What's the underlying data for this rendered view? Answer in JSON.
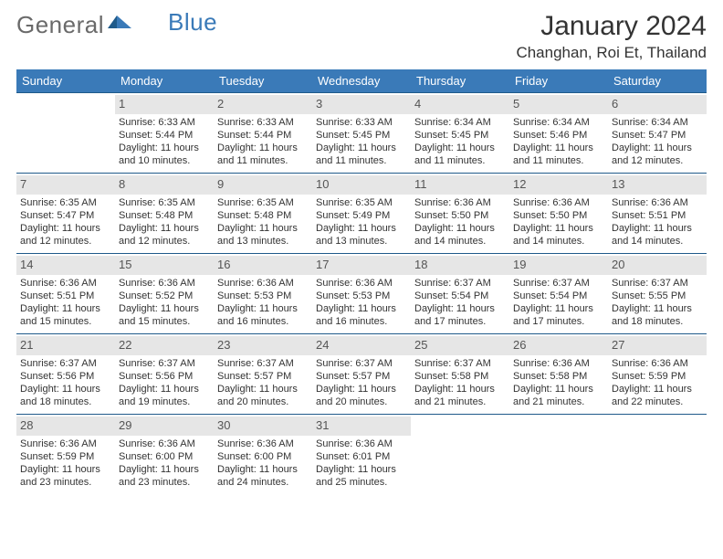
{
  "brand": {
    "text1": "General",
    "text2": "Blue"
  },
  "title": "January 2024",
  "location": "Changhan, Roi Et, Thailand",
  "colors": {
    "header_bg": "#3a7ab8",
    "header_text": "#ffffff",
    "daynum_bg": "#e6e6e6",
    "row_border": "#1f5a8a",
    "body_text": "#333333",
    "page_bg": "#ffffff"
  },
  "weekdays": [
    "Sunday",
    "Monday",
    "Tuesday",
    "Wednesday",
    "Thursday",
    "Friday",
    "Saturday"
  ],
  "grid": {
    "start_offset": 1,
    "rows": 5,
    "cols": 7
  },
  "days": [
    {
      "n": "1",
      "sunrise": "Sunrise: 6:33 AM",
      "sunset": "Sunset: 5:44 PM",
      "d1": "Daylight: 11 hours",
      "d2": "and 10 minutes."
    },
    {
      "n": "2",
      "sunrise": "Sunrise: 6:33 AM",
      "sunset": "Sunset: 5:44 PM",
      "d1": "Daylight: 11 hours",
      "d2": "and 11 minutes."
    },
    {
      "n": "3",
      "sunrise": "Sunrise: 6:33 AM",
      "sunset": "Sunset: 5:45 PM",
      "d1": "Daylight: 11 hours",
      "d2": "and 11 minutes."
    },
    {
      "n": "4",
      "sunrise": "Sunrise: 6:34 AM",
      "sunset": "Sunset: 5:45 PM",
      "d1": "Daylight: 11 hours",
      "d2": "and 11 minutes."
    },
    {
      "n": "5",
      "sunrise": "Sunrise: 6:34 AM",
      "sunset": "Sunset: 5:46 PM",
      "d1": "Daylight: 11 hours",
      "d2": "and 11 minutes."
    },
    {
      "n": "6",
      "sunrise": "Sunrise: 6:34 AM",
      "sunset": "Sunset: 5:47 PM",
      "d1": "Daylight: 11 hours",
      "d2": "and 12 minutes."
    },
    {
      "n": "7",
      "sunrise": "Sunrise: 6:35 AM",
      "sunset": "Sunset: 5:47 PM",
      "d1": "Daylight: 11 hours",
      "d2": "and 12 minutes."
    },
    {
      "n": "8",
      "sunrise": "Sunrise: 6:35 AM",
      "sunset": "Sunset: 5:48 PM",
      "d1": "Daylight: 11 hours",
      "d2": "and 12 minutes."
    },
    {
      "n": "9",
      "sunrise": "Sunrise: 6:35 AM",
      "sunset": "Sunset: 5:48 PM",
      "d1": "Daylight: 11 hours",
      "d2": "and 13 minutes."
    },
    {
      "n": "10",
      "sunrise": "Sunrise: 6:35 AM",
      "sunset": "Sunset: 5:49 PM",
      "d1": "Daylight: 11 hours",
      "d2": "and 13 minutes."
    },
    {
      "n": "11",
      "sunrise": "Sunrise: 6:36 AM",
      "sunset": "Sunset: 5:50 PM",
      "d1": "Daylight: 11 hours",
      "d2": "and 14 minutes."
    },
    {
      "n": "12",
      "sunrise": "Sunrise: 6:36 AM",
      "sunset": "Sunset: 5:50 PM",
      "d1": "Daylight: 11 hours",
      "d2": "and 14 minutes."
    },
    {
      "n": "13",
      "sunrise": "Sunrise: 6:36 AM",
      "sunset": "Sunset: 5:51 PM",
      "d1": "Daylight: 11 hours",
      "d2": "and 14 minutes."
    },
    {
      "n": "14",
      "sunrise": "Sunrise: 6:36 AM",
      "sunset": "Sunset: 5:51 PM",
      "d1": "Daylight: 11 hours",
      "d2": "and 15 minutes."
    },
    {
      "n": "15",
      "sunrise": "Sunrise: 6:36 AM",
      "sunset": "Sunset: 5:52 PM",
      "d1": "Daylight: 11 hours",
      "d2": "and 15 minutes."
    },
    {
      "n": "16",
      "sunrise": "Sunrise: 6:36 AM",
      "sunset": "Sunset: 5:53 PM",
      "d1": "Daylight: 11 hours",
      "d2": "and 16 minutes."
    },
    {
      "n": "17",
      "sunrise": "Sunrise: 6:36 AM",
      "sunset": "Sunset: 5:53 PM",
      "d1": "Daylight: 11 hours",
      "d2": "and 16 minutes."
    },
    {
      "n": "18",
      "sunrise": "Sunrise: 6:37 AM",
      "sunset": "Sunset: 5:54 PM",
      "d1": "Daylight: 11 hours",
      "d2": "and 17 minutes."
    },
    {
      "n": "19",
      "sunrise": "Sunrise: 6:37 AM",
      "sunset": "Sunset: 5:54 PM",
      "d1": "Daylight: 11 hours",
      "d2": "and 17 minutes."
    },
    {
      "n": "20",
      "sunrise": "Sunrise: 6:37 AM",
      "sunset": "Sunset: 5:55 PM",
      "d1": "Daylight: 11 hours",
      "d2": "and 18 minutes."
    },
    {
      "n": "21",
      "sunrise": "Sunrise: 6:37 AM",
      "sunset": "Sunset: 5:56 PM",
      "d1": "Daylight: 11 hours",
      "d2": "and 18 minutes."
    },
    {
      "n": "22",
      "sunrise": "Sunrise: 6:37 AM",
      "sunset": "Sunset: 5:56 PM",
      "d1": "Daylight: 11 hours",
      "d2": "and 19 minutes."
    },
    {
      "n": "23",
      "sunrise": "Sunrise: 6:37 AM",
      "sunset": "Sunset: 5:57 PM",
      "d1": "Daylight: 11 hours",
      "d2": "and 20 minutes."
    },
    {
      "n": "24",
      "sunrise": "Sunrise: 6:37 AM",
      "sunset": "Sunset: 5:57 PM",
      "d1": "Daylight: 11 hours",
      "d2": "and 20 minutes."
    },
    {
      "n": "25",
      "sunrise": "Sunrise: 6:37 AM",
      "sunset": "Sunset: 5:58 PM",
      "d1": "Daylight: 11 hours",
      "d2": "and 21 minutes."
    },
    {
      "n": "26",
      "sunrise": "Sunrise: 6:36 AM",
      "sunset": "Sunset: 5:58 PM",
      "d1": "Daylight: 11 hours",
      "d2": "and 21 minutes."
    },
    {
      "n": "27",
      "sunrise": "Sunrise: 6:36 AM",
      "sunset": "Sunset: 5:59 PM",
      "d1": "Daylight: 11 hours",
      "d2": "and 22 minutes."
    },
    {
      "n": "28",
      "sunrise": "Sunrise: 6:36 AM",
      "sunset": "Sunset: 5:59 PM",
      "d1": "Daylight: 11 hours",
      "d2": "and 23 minutes."
    },
    {
      "n": "29",
      "sunrise": "Sunrise: 6:36 AM",
      "sunset": "Sunset: 6:00 PM",
      "d1": "Daylight: 11 hours",
      "d2": "and 23 minutes."
    },
    {
      "n": "30",
      "sunrise": "Sunrise: 6:36 AM",
      "sunset": "Sunset: 6:00 PM",
      "d1": "Daylight: 11 hours",
      "d2": "and 24 minutes."
    },
    {
      "n": "31",
      "sunrise": "Sunrise: 6:36 AM",
      "sunset": "Sunset: 6:01 PM",
      "d1": "Daylight: 11 hours",
      "d2": "and 25 minutes."
    }
  ]
}
